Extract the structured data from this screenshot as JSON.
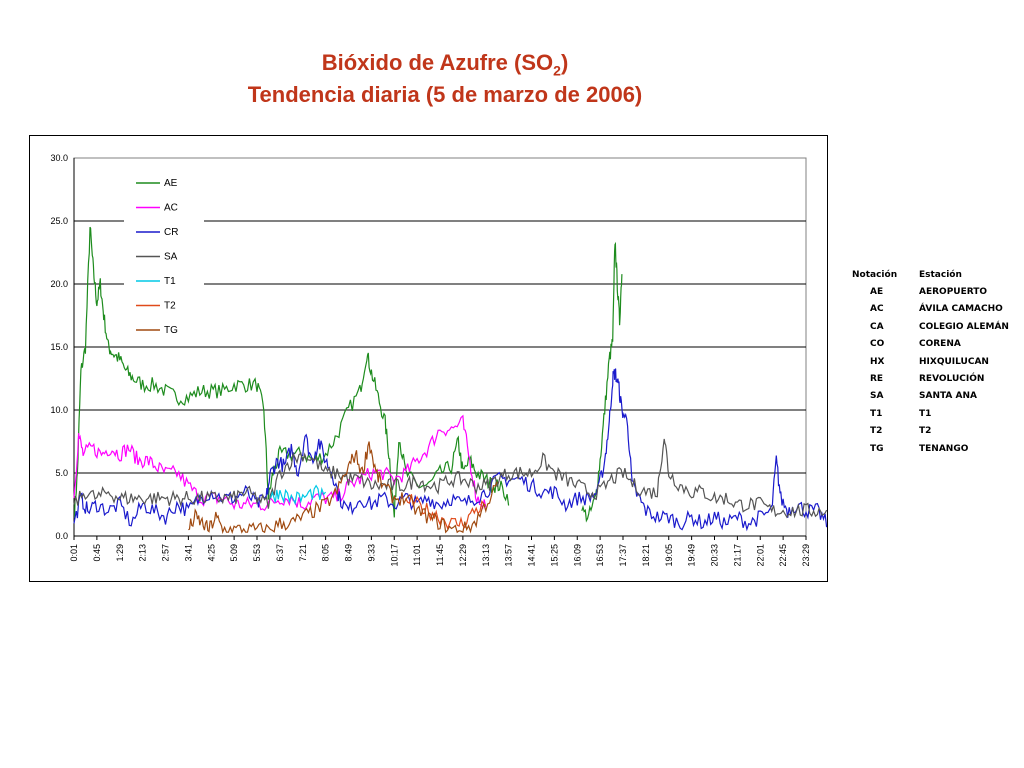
{
  "title": {
    "line1_main": "Bióxido de Azufre (SO",
    "line1_sub": "2",
    "line1_end": ")",
    "line2": "Tendencia diaria (5 de marzo de 2006)"
  },
  "station_table": {
    "headers": [
      "Notación",
      "Estación"
    ],
    "rows": [
      [
        "AE",
        "AEROPUERTO"
      ],
      [
        "AC",
        "ÁVILA CAMACHO"
      ],
      [
        "CA",
        "COLEGIO ALEMÁN"
      ],
      [
        "CO",
        "CORENA"
      ],
      [
        "HX",
        "HIXQUILUCAN"
      ],
      [
        "RE",
        "REVOLUCIÓN"
      ],
      [
        "SA",
        "SANTA ANA"
      ],
      [
        "T1",
        "T1"
      ],
      [
        "T2",
        "T2"
      ],
      [
        "TG",
        "TENANGO"
      ]
    ]
  },
  "chart_data": {
    "type": "line",
    "title": "Bióxido de Azufre (SO2) Tendencia diaria (5 de marzo de 2006)",
    "xlabel": "",
    "ylabel": "",
    "ylim": [
      0,
      30
    ],
    "yticks": [
      "0.0",
      "5.0",
      "10.0",
      "15.0",
      "20.0",
      "25.0",
      "30.0"
    ],
    "xticks": [
      "0:01",
      "0:45",
      "1:29",
      "2:13",
      "2:57",
      "3:41",
      "4:25",
      "5:09",
      "5:53",
      "6:37",
      "7:21",
      "8:05",
      "8:49",
      "9:33",
      "10:17",
      "11:01",
      "11:45",
      "12:29",
      "13:13",
      "13:57",
      "14:41",
      "15:25",
      "16:09",
      "16:53",
      "17:37",
      "18:21",
      "19:05",
      "19:49",
      "20:33",
      "21:17",
      "22:01",
      "22:45",
      "23:29"
    ],
    "grid": "horizontal major lines",
    "legend_position": "top-left inside plot",
    "series": [
      {
        "name": "AE",
        "color": "#1e8c1e",
        "points": [
          [
            0,
            1.5
          ],
          [
            0.15,
            5
          ],
          [
            0.3,
            13
          ],
          [
            0.5,
            15
          ],
          [
            0.7,
            24.5
          ],
          [
            0.85,
            21
          ],
          [
            1.0,
            18.5
          ],
          [
            1.15,
            20
          ],
          [
            1.3,
            17.5
          ],
          [
            1.5,
            15
          ],
          [
            1.7,
            14.5
          ],
          [
            2.0,
            14
          ],
          [
            2.3,
            13
          ],
          [
            2.6,
            12.5
          ],
          [
            3.0,
            12
          ],
          [
            3.5,
            12
          ],
          [
            4.0,
            11.5
          ],
          [
            4.5,
            11
          ],
          [
            5.0,
            11
          ],
          [
            5.5,
            11.5
          ],
          [
            6.0,
            11.5
          ],
          [
            6.5,
            11.5
          ],
          [
            7.0,
            12
          ],
          [
            7.5,
            12
          ],
          [
            8.0,
            12
          ],
          [
            8.3,
            10
          ],
          [
            8.5,
            3
          ],
          [
            8.7,
            5
          ],
          [
            9.0,
            6.5
          ],
          [
            9.5,
            6.5
          ],
          [
            10.0,
            6.5
          ],
          [
            10.5,
            6
          ],
          [
            11.0,
            6.5
          ],
          [
            11.5,
            8
          ],
          [
            12.0,
            10
          ],
          [
            12.5,
            11.5
          ],
          [
            12.8,
            14.5
          ],
          [
            13.0,
            13
          ],
          [
            13.3,
            11
          ],
          [
            13.6,
            9
          ],
          [
            13.8,
            6
          ],
          [
            14.0,
            1.5
          ],
          [
            14.2,
            8
          ],
          [
            14.5,
            5
          ],
          [
            15.0,
            4
          ],
          [
            15.5,
            4
          ],
          [
            16.0,
            5
          ],
          [
            16.5,
            5.5
          ],
          [
            16.8,
            7.5
          ],
          [
            17.0,
            5
          ],
          [
            17.3,
            6
          ],
          [
            17.6,
            5
          ],
          [
            18.0,
            4.5
          ],
          [
            18.3,
            4
          ],
          [
            18.6,
            4
          ],
          [
            19.0,
            3
          ]
        ]
      },
      {
        "name": "AE (end)",
        "color": "#1e8c1e",
        "legend": false,
        "points": [
          [
            22.2,
            2
          ],
          [
            22.5,
            1.5
          ],
          [
            22.8,
            3
          ],
          [
            23.0,
            6
          ],
          [
            23.2,
            10
          ],
          [
            23.4,
            14
          ],
          [
            23.55,
            15.5
          ],
          [
            23.65,
            23.5
          ],
          [
            23.75,
            20
          ],
          [
            23.85,
            17
          ],
          [
            23.95,
            21
          ]
        ]
      },
      {
        "name": "AC",
        "color": "#ff00ff",
        "points": [
          [
            0,
            3
          ],
          [
            0.2,
            8
          ],
          [
            0.4,
            6.5
          ],
          [
            0.8,
            7
          ],
          [
            1.2,
            6.5
          ],
          [
            1.6,
            7
          ],
          [
            2.0,
            6.5
          ],
          [
            2.4,
            7
          ],
          [
            2.8,
            6
          ],
          [
            3.2,
            6
          ],
          [
            3.6,
            5.5
          ],
          [
            4.0,
            5
          ],
          [
            4.5,
            5
          ],
          [
            5.0,
            4
          ],
          [
            5.5,
            3
          ],
          [
            6.0,
            3
          ],
          [
            6.5,
            3
          ],
          [
            7.0,
            2.5
          ],
          [
            7.5,
            2.5
          ],
          [
            8.0,
            2.5
          ],
          [
            8.5,
            2.5
          ],
          [
            9.0,
            3
          ],
          [
            9.5,
            3
          ],
          [
            10.0,
            2.5
          ],
          [
            10.5,
            3
          ],
          [
            11.0,
            3
          ],
          [
            11.5,
            3
          ],
          [
            12.0,
            4
          ],
          [
            12.5,
            4.5
          ],
          [
            13.0,
            5
          ],
          [
            13.5,
            5
          ],
          [
            14.0,
            4.5
          ],
          [
            14.5,
            5
          ],
          [
            15.0,
            6
          ],
          [
            15.5,
            7
          ],
          [
            16.0,
            8.5
          ],
          [
            16.5,
            8.5
          ],
          [
            17.0,
            9
          ],
          [
            17.3,
            6
          ],
          [
            17.6,
            3
          ],
          [
            18.0,
            2.5
          ]
        ]
      },
      {
        "name": "CR",
        "color": "#1a1acc",
        "points": [
          [
            0,
            1
          ],
          [
            0.3,
            3
          ],
          [
            0.6,
            2
          ],
          [
            1.0,
            2.5
          ],
          [
            1.5,
            2
          ],
          [
            2.0,
            2.5
          ],
          [
            2.5,
            1
          ],
          [
            3.0,
            2.5
          ],
          [
            3.5,
            2
          ],
          [
            4.0,
            1.5
          ],
          [
            4.5,
            2.5
          ],
          [
            5.0,
            2
          ],
          [
            5.5,
            3
          ],
          [
            6.0,
            3.5
          ],
          [
            6.5,
            3
          ],
          [
            7.0,
            3
          ],
          [
            7.5,
            3.5
          ],
          [
            8.0,
            2.5
          ],
          [
            8.4,
            3
          ],
          [
            8.6,
            5
          ],
          [
            8.9,
            6
          ],
          [
            9.2,
            5.5
          ],
          [
            9.5,
            7
          ],
          [
            9.8,
            5
          ],
          [
            10.1,
            8
          ],
          [
            10.4,
            6
          ],
          [
            10.7,
            7.5
          ],
          [
            11.0,
            6
          ],
          [
            11.3,
            5
          ],
          [
            11.6,
            3
          ],
          [
            12.0,
            2
          ],
          [
            12.5,
            3
          ],
          [
            13.0,
            2.5
          ],
          [
            13.5,
            3
          ],
          [
            14.0,
            2.5
          ],
          [
            14.5,
            3
          ],
          [
            15.0,
            2.5
          ],
          [
            15.5,
            3
          ],
          [
            16.0,
            2.5
          ],
          [
            16.5,
            3
          ],
          [
            17.0,
            2.5
          ],
          [
            17.5,
            3
          ],
          [
            18.0,
            3.5
          ],
          [
            18.5,
            4.5
          ],
          [
            19.0,
            4.5
          ],
          [
            19.5,
            4.5
          ],
          [
            20.0,
            4
          ],
          [
            20.5,
            3.5
          ],
          [
            21.0,
            3.5
          ],
          [
            21.5,
            2.5
          ],
          [
            22.0,
            3
          ],
          [
            22.5,
            3
          ],
          [
            22.9,
            3.5
          ],
          [
            23.2,
            6
          ],
          [
            23.4,
            9
          ],
          [
            23.55,
            12.5
          ],
          [
            23.65,
            13
          ],
          [
            23.8,
            12
          ],
          [
            23.95,
            10
          ],
          [
            24.2,
            9
          ],
          [
            24.4,
            4
          ],
          [
            24.7,
            3
          ],
          [
            25.0,
            2
          ],
          [
            25.5,
            1.5
          ],
          [
            26.0,
            1.5
          ],
          [
            26.5,
            1
          ],
          [
            27.0,
            1.5
          ],
          [
            27.5,
            1
          ],
          [
            28.0,
            1.5
          ],
          [
            28.5,
            1
          ],
          [
            29.0,
            1.5
          ],
          [
            29.5,
            1
          ],
          [
            30.0,
            1.5
          ],
          [
            30.5,
            2
          ],
          [
            30.7,
            6
          ],
          [
            30.9,
            3
          ],
          [
            31.2,
            2
          ],
          [
            31.6,
            2.5
          ],
          [
            32.0,
            2
          ],
          [
            32.5,
            2
          ],
          [
            32.9,
            1
          ]
        ]
      },
      {
        "name": "SA",
        "color": "#555555",
        "points": [
          [
            0,
            2.5
          ],
          [
            0.5,
            3.5
          ],
          [
            1.0,
            3
          ],
          [
            1.5,
            3.5
          ],
          [
            2.0,
            3
          ],
          [
            2.5,
            3
          ],
          [
            3.0,
            3
          ],
          [
            3.5,
            3
          ],
          [
            4.0,
            3
          ],
          [
            4.5,
            3
          ],
          [
            5.0,
            3
          ],
          [
            5.5,
            3
          ],
          [
            6.0,
            3
          ],
          [
            6.5,
            3
          ],
          [
            7.0,
            3
          ],
          [
            7.5,
            3.5
          ],
          [
            8.0,
            3
          ],
          [
            8.5,
            2.5
          ],
          [
            9.0,
            5
          ],
          [
            9.5,
            6
          ],
          [
            10.0,
            6.5
          ],
          [
            10.5,
            6
          ],
          [
            11.0,
            5
          ],
          [
            11.5,
            5
          ],
          [
            12.0,
            4.5
          ],
          [
            12.5,
            4.5
          ],
          [
            13.0,
            4
          ],
          [
            13.5,
            4
          ],
          [
            14.0,
            4
          ],
          [
            14.5,
            4
          ],
          [
            15.0,
            4.5
          ],
          [
            15.5,
            4
          ],
          [
            16.0,
            4
          ],
          [
            16.5,
            4.5
          ],
          [
            17.0,
            4.5
          ],
          [
            17.5,
            4
          ],
          [
            18.0,
            4
          ],
          [
            18.5,
            4.5
          ],
          [
            19.0,
            5
          ],
          [
            19.5,
            5
          ],
          [
            20.0,
            5
          ],
          [
            20.5,
            6
          ],
          [
            21.0,
            5
          ],
          [
            21.5,
            4.5
          ],
          [
            22.0,
            4
          ],
          [
            22.5,
            3.5
          ],
          [
            23.0,
            3.5
          ],
          [
            23.5,
            4.5
          ],
          [
            24.0,
            5
          ],
          [
            24.5,
            4
          ],
          [
            25.0,
            3.5
          ],
          [
            25.5,
            3.5
          ],
          [
            25.8,
            8
          ],
          [
            26.0,
            5
          ],
          [
            26.5,
            4
          ],
          [
            27.0,
            3.5
          ],
          [
            27.5,
            3.5
          ],
          [
            28.0,
            3
          ],
          [
            28.5,
            3
          ],
          [
            29.0,
            2.5
          ],
          [
            29.5,
            2.5
          ],
          [
            30.0,
            2.5
          ],
          [
            30.5,
            2
          ],
          [
            31.0,
            2
          ],
          [
            31.5,
            2
          ],
          [
            32.0,
            2
          ],
          [
            32.5,
            2
          ],
          [
            32.9,
            2
          ]
        ]
      },
      {
        "name": "T1",
        "color": "#00c8e6",
        "points": [
          [
            8.6,
            3
          ],
          [
            9.0,
            3.5
          ],
          [
            9.5,
            3
          ],
          [
            10.0,
            3
          ],
          [
            10.5,
            3.5
          ],
          [
            11.0,
            3
          ]
        ]
      },
      {
        "name": "T2",
        "color": "#e04a1a",
        "points": [
          [
            14.5,
            3
          ],
          [
            15.0,
            2.5
          ],
          [
            15.5,
            2
          ],
          [
            16.0,
            1.5
          ],
          [
            16.5,
            1
          ],
          [
            17.0,
            1
          ],
          [
            17.5,
            2
          ],
          [
            18.0,
            2.5
          ]
        ]
      },
      {
        "name": "TG",
        "color": "#a04a10",
        "points": [
          [
            5.0,
            0.5
          ],
          [
            5.3,
            1.5
          ],
          [
            5.6,
            1
          ],
          [
            5.9,
            0.5
          ],
          [
            6.2,
            1.5
          ],
          [
            6.5,
            0.5
          ],
          [
            7.0,
            0.5
          ],
          [
            7.5,
            0.5
          ],
          [
            8.0,
            0.5
          ],
          [
            8.5,
            0.5
          ],
          [
            9.0,
            1
          ],
          [
            9.5,
            1
          ],
          [
            10.0,
            1.5
          ],
          [
            10.5,
            2
          ],
          [
            11.0,
            2.5
          ],
          [
            11.5,
            3.5
          ],
          [
            12.0,
            5.5
          ],
          [
            12.3,
            6.5
          ],
          [
            12.6,
            5
          ],
          [
            12.9,
            7.5
          ],
          [
            13.2,
            5
          ],
          [
            13.5,
            4
          ],
          [
            14.0,
            3
          ],
          [
            14.5,
            3
          ],
          [
            15.0,
            2
          ],
          [
            15.5,
            1.5
          ],
          [
            16.0,
            1
          ],
          [
            16.5,
            0.5
          ],
          [
            17.0,
            0.5
          ],
          [
            17.5,
            1
          ],
          [
            18.0,
            2.5
          ],
          [
            18.5,
            4
          ]
        ]
      }
    ]
  }
}
